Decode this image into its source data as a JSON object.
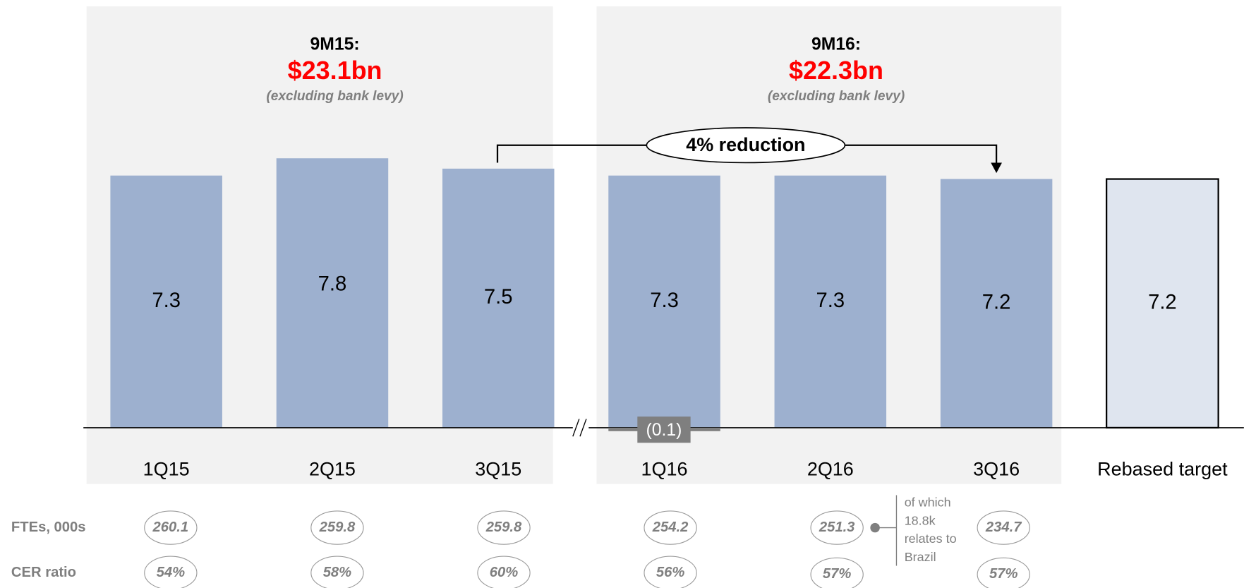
{
  "chart_data": {
    "type": "bar",
    "categories": [
      "1Q15",
      "2Q15",
      "3Q15",
      "1Q16",
      "2Q16",
      "3Q16",
      "Rebased target"
    ],
    "values": [
      7.3,
      7.8,
      7.5,
      7.3,
      7.3,
      7.2,
      7.2
    ],
    "bar_colors": [
      "#9db0cf",
      "#9db0cf",
      "#9db0cf",
      "#9db0cf",
      "#9db0cf",
      "#9db0cf",
      "#dfe5ef"
    ],
    "adjustments": [
      null,
      null,
      null,
      -0.1,
      null,
      null,
      null
    ],
    "adjustment_labels": [
      null,
      null,
      null,
      "(0.1)",
      null,
      null,
      null
    ],
    "adjustment_color": "#7f7f7f",
    "ylim": [
      0,
      8.5
    ],
    "panels": [
      {
        "title": "9M15:",
        "total": "$23.1bn",
        "note": "(excluding bank levy)"
      },
      {
        "title": "9M16:",
        "total": "$22.3bn",
        "note": "(excluding bank levy)"
      }
    ],
    "annotation": "4% reduction",
    "rows": [
      {
        "label": "FTEs, 000s",
        "values": [
          260.1,
          259.8,
          259.8,
          254.2,
          251.3,
          234.7
        ]
      },
      {
        "label": "CER ratio",
        "values": [
          54,
          58,
          60,
          56,
          57,
          57
        ],
        "value_labels": [
          "54%",
          "58%",
          "60%",
          "56%",
          "57%",
          "57%"
        ]
      }
    ],
    "footnote": [
      "of which",
      "18.8k",
      "relates to",
      "Brazil"
    ]
  }
}
